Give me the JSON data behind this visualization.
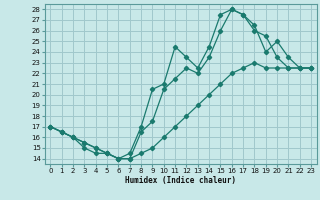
{
  "xlabel": "Humidex (Indice chaleur)",
  "background_color": "#c8e8e8",
  "grid_color": "#a0c8cc",
  "line_color": "#1a7a6e",
  "xlim": [
    -0.5,
    23.5
  ],
  "ylim": [
    13.5,
    28.5
  ],
  "xticks": [
    0,
    1,
    2,
    3,
    4,
    5,
    6,
    7,
    8,
    9,
    10,
    11,
    12,
    13,
    14,
    15,
    16,
    17,
    18,
    19,
    20,
    21,
    22,
    23
  ],
  "yticks": [
    14,
    15,
    16,
    17,
    18,
    19,
    20,
    21,
    22,
    23,
    24,
    25,
    26,
    27,
    28
  ],
  "line1_x": [
    0,
    1,
    2,
    3,
    4,
    5,
    6,
    7,
    8,
    9,
    10,
    11,
    12,
    13,
    14,
    15,
    16,
    17,
    18,
    19,
    20,
    21,
    22,
    23
  ],
  "line1_y": [
    17.0,
    16.5,
    16.0,
    15.5,
    15.0,
    14.5,
    14.0,
    14.0,
    14.5,
    15.0,
    16.0,
    17.0,
    18.0,
    19.0,
    20.0,
    21.0,
    22.0,
    22.5,
    23.0,
    22.5,
    22.5,
    22.5,
    22.5,
    22.5
  ],
  "line2_x": [
    0,
    1,
    2,
    3,
    4,
    5,
    6,
    7,
    8,
    9,
    10,
    11,
    12,
    13,
    14,
    15,
    16,
    17,
    18,
    19,
    20,
    21,
    22,
    23
  ],
  "line2_y": [
    17.0,
    16.5,
    16.0,
    15.0,
    14.5,
    14.5,
    14.0,
    14.0,
    16.5,
    17.5,
    20.5,
    21.5,
    22.5,
    22.0,
    23.5,
    26.0,
    28.0,
    27.5,
    26.0,
    25.5,
    23.5,
    22.5,
    22.5,
    22.5
  ],
  "line3_x": [
    0,
    1,
    2,
    3,
    4,
    5,
    6,
    7,
    8,
    9,
    10,
    11,
    12,
    13,
    14,
    15,
    16,
    17,
    18,
    19,
    20,
    21,
    22,
    23
  ],
  "line3_y": [
    17.0,
    16.5,
    16.0,
    15.5,
    15.0,
    14.5,
    14.0,
    14.5,
    17.0,
    20.5,
    21.0,
    24.5,
    23.5,
    22.5,
    24.5,
    27.5,
    28.0,
    27.5,
    26.5,
    24.0,
    25.0,
    23.5,
    22.5,
    22.5
  ]
}
